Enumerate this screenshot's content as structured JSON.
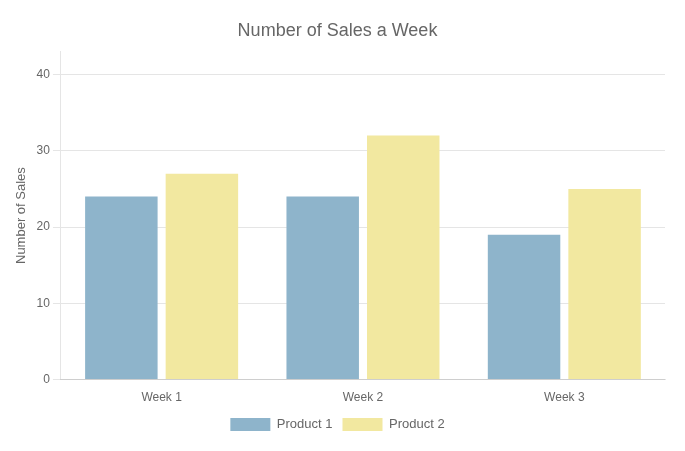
{
  "chart_data": {
    "type": "bar",
    "title": "Number of Sales a Week",
    "ylabel": "Number of Sales",
    "categories": [
      "Week 1",
      "Week 2",
      "Week 3"
    ],
    "series": [
      {
        "name": "Product 1",
        "color": "#8eb4cb",
        "values": [
          24,
          24,
          19
        ]
      },
      {
        "name": "Product 2",
        "color": "#f2e8a0",
        "values": [
          27,
          32,
          25
        ]
      }
    ],
    "ylim": [
      0,
      43
    ],
    "yticks": [
      0,
      10,
      20,
      30,
      40
    ],
    "grid": true,
    "legend": "bottom"
  }
}
